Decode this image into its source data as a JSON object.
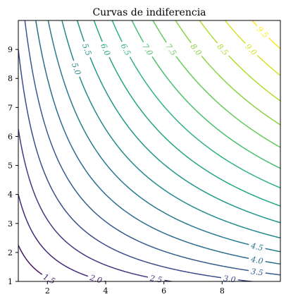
{
  "chart_data": {
    "type": "contour",
    "title": "Curvas de indiferencia",
    "xlabel": "",
    "ylabel": "",
    "xlim": [
      1,
      10
    ],
    "ylim": [
      1,
      10
    ],
    "x_ticks": [
      2,
      4,
      6,
      8
    ],
    "y_ticks": [
      1,
      2,
      3,
      4,
      5,
      6,
      7,
      8,
      9
    ],
    "levels": [
      1.0,
      1.5,
      2.0,
      2.5,
      3.0,
      3.5,
      4.0,
      4.5,
      5.0,
      5.5,
      6.0,
      6.5,
      7.0,
      7.5,
      8.0,
      8.5,
      9.0,
      9.5
    ],
    "level_labels": [
      "1.5",
      "2.0",
      "2.5",
      "3.0",
      "3.5",
      "4.0",
      "4.5",
      "5.0",
      "5.5",
      "6.0",
      "6.5",
      "7.0",
      "7.5",
      "8.0",
      "8.5",
      "9.0",
      "9.5"
    ],
    "colormap": "viridis",
    "utility_function": "sqrt(x*y)",
    "grid": false
  }
}
